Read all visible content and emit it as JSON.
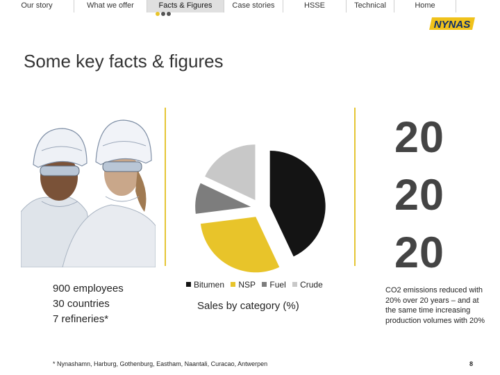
{
  "nav": {
    "items": [
      {
        "label": "Our story"
      },
      {
        "label": "What we offer"
      },
      {
        "label": "Facts & Figures",
        "active": true
      },
      {
        "label": "Case stories"
      },
      {
        "label": "HSSE"
      },
      {
        "label": "Technical"
      },
      {
        "label": "Home"
      }
    ]
  },
  "brand": {
    "logo_text": "NYNAS",
    "accent": "#f0c21b"
  },
  "page": {
    "title": "Some key facts & figures",
    "page_number": "8"
  },
  "facts": [
    "900 employees",
    "30 countries",
    "7 refineries*"
  ],
  "big_numbers": [
    "20",
    "20",
    "20"
  ],
  "co2_text": "CO2 emissions reduced with 20% over 20 years – and at the same time increasing production volumes with 20%",
  "footnote": "* Nynashamn, Harburg, Gothenburg, Eastham, Naantali, Curacao, Antwerpen",
  "colors": {
    "bitumen": "#141414",
    "nsp": "#e8c42a",
    "fuel": "#7d7d7d",
    "crude": "#c8c8c8"
  },
  "chart_data": {
    "type": "pie",
    "title": "Sales by category (%)",
    "categories": [
      "Bitumen",
      "NSP",
      "Fuel",
      "Crude"
    ],
    "values": [
      43,
      30,
      9,
      18
    ],
    "legend": "bottom",
    "exploded": true
  }
}
